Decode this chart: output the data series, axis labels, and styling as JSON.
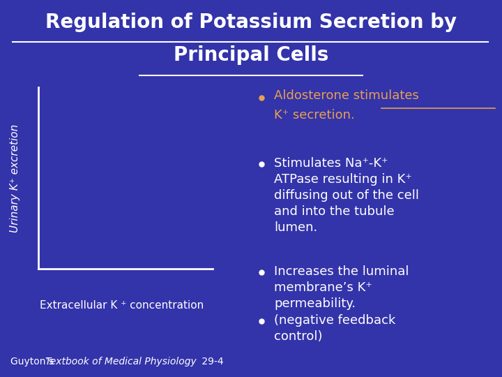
{
  "background_color": "#3333AA",
  "title_line1": "Regulation of Potassium Secretion by",
  "title_line2": "Principal Cells",
  "title_color": "#FFFFFF",
  "title_fontsize": 20,
  "bullet1_color": "#E8A050",
  "bullet2_text": "Stimulates Na⁺-K⁺\nATPase resulting in K⁺\ndiffusing out of the cell\nand into the tubule\nlumen.",
  "bullet3_text": "Increases the luminal\nmembrane’s K⁺\npermeability.",
  "bullet4_text": "(negative feedback\ncontrol)",
  "bullet_color_white": "#FFFFFF",
  "ylabel": "Urinary K⁺ excretion",
  "xlabel": "Extracellular K ⁺ concentration",
  "axis_color": "#FFFFFF",
  "footnote_normal1": "Guyton’s ",
  "footnote_italic": "Textbook of Medical Physiology",
  "footnote_normal2": " 29-4",
  "footnote_color": "#FFFFFF",
  "footnote_fontsize": 10,
  "bullet_fontsize": 13
}
